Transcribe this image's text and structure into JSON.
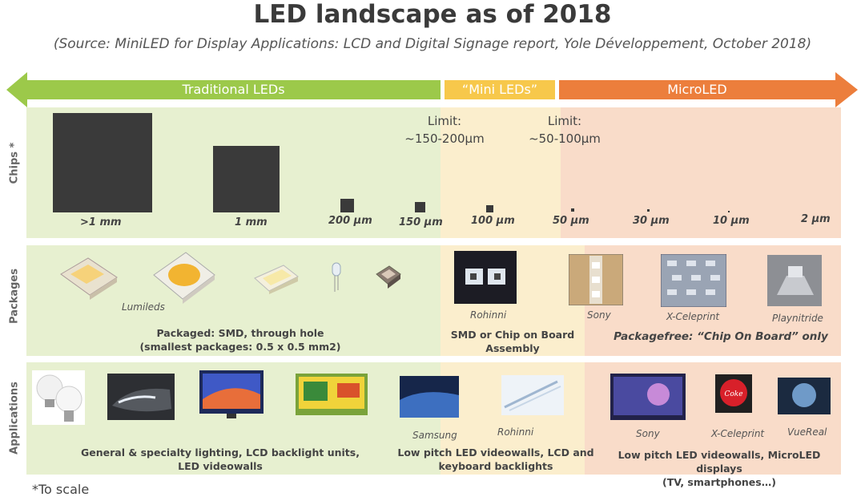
{
  "header": {
    "title": "LED landscape as of 2018",
    "subtitle": "(Source: MiniLED for Display Applications: LCD and Digital Signage report, Yole Développement, October 2018)"
  },
  "bands": {
    "traditional": "Traditional LEDs",
    "mini": "“Mini LEDs”",
    "micro": "MicroLED"
  },
  "rows": {
    "chips": "Chips *",
    "packages": "Packages",
    "applications": "Applications"
  },
  "chips": {
    "sizes": [
      ">1 mm",
      "1 mm",
      "200 μm",
      "150 μm",
      "100 μm",
      "50 μm",
      "30 μm",
      "10 μm",
      "2 μm"
    ],
    "limit_mini": [
      "Limit:",
      "~150-200μm"
    ],
    "limit_micro": [
      "Limit:",
      "~50-100μm"
    ]
  },
  "packages": {
    "lumileds": "Lumileds",
    "rohinni": "Rohinni",
    "sony": "Sony",
    "xceleprint": "X-Celeprint",
    "playnitride": "Playnitride",
    "caption_traditional": [
      "Packaged: SMD, through hole",
      "(smallest packages: 0.5 x 0.5 mm2)"
    ],
    "caption_mini": [
      "SMD or Chip on Board",
      "Assembly"
    ],
    "caption_micro": "Packagefree: “Chip On Board” only"
  },
  "applications": {
    "samsung": "Samsung",
    "rohinni": "Rohinni",
    "sony": "Sony",
    "xceleprint": "X-Celeprint",
    "vuereal": "VueReal",
    "caption_traditional": [
      "General & specialty lighting, LCD backlight units,",
      "LED videowalls"
    ],
    "caption_mini": [
      "Low pitch LED videowalls, LCD and",
      "keyboard  backlights"
    ],
    "caption_micro": [
      "Low pitch LED videowalls, MicroLED displays",
      "(TV, smartphones…)"
    ]
  },
  "footnote": "*To scale",
  "colors": {
    "green": "#9cc94a",
    "green_bg": "#e7f0d0",
    "yellow": "#f7c84b",
    "yellow_bg": "#fbeecd",
    "orange": "#ec7e3c",
    "orange_bg": "#f9dcc9",
    "chip": "#3a3a3a"
  }
}
